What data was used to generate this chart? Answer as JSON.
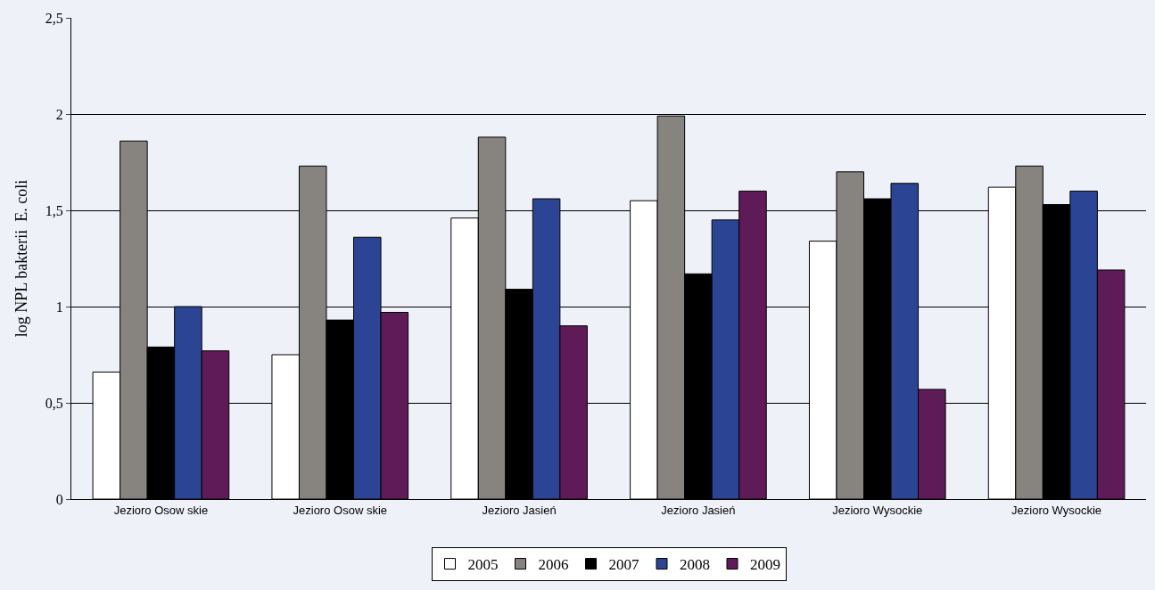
{
  "chart_data": {
    "type": "bar",
    "ylabel": "log NPL bakterii  E. coli",
    "categories": [
      "Jezioro Osow skie",
      "Jezioro Osow skie",
      "Jezioro Jasień",
      "Jezioro Jasień",
      "Jezioro Wysockie",
      "Jezioro Wysockie"
    ],
    "series": [
      {
        "name": "2005",
        "color": "#ffffff",
        "values": [
          0.66,
          0.75,
          1.46,
          1.55,
          1.34,
          1.62
        ]
      },
      {
        "name": "2006",
        "color": "#878480",
        "values": [
          1.86,
          1.73,
          1.88,
          1.99,
          1.7,
          1.73
        ]
      },
      {
        "name": "2007",
        "color": "#000000",
        "values": [
          0.79,
          0.93,
          1.09,
          1.17,
          1.56,
          1.53
        ]
      },
      {
        "name": "2008",
        "color": "#2b4594",
        "values": [
          1.0,
          1.36,
          1.56,
          1.45,
          1.64,
          1.6
        ]
      },
      {
        "name": "2009",
        "color": "#5e1b58",
        "values": [
          0.77,
          0.97,
          0.9,
          1.6,
          0.57,
          1.19
        ]
      }
    ],
    "ylim": [
      0,
      2.5
    ],
    "yticks": [
      0,
      {
        "value": 0.5,
        "label": "0,5"
      },
      1,
      {
        "value": 1.5,
        "label": "1,5"
      },
      2,
      {
        "value": 2.5,
        "label": "2,5"
      }
    ],
    "grid": "y",
    "legend": "bottom"
  }
}
